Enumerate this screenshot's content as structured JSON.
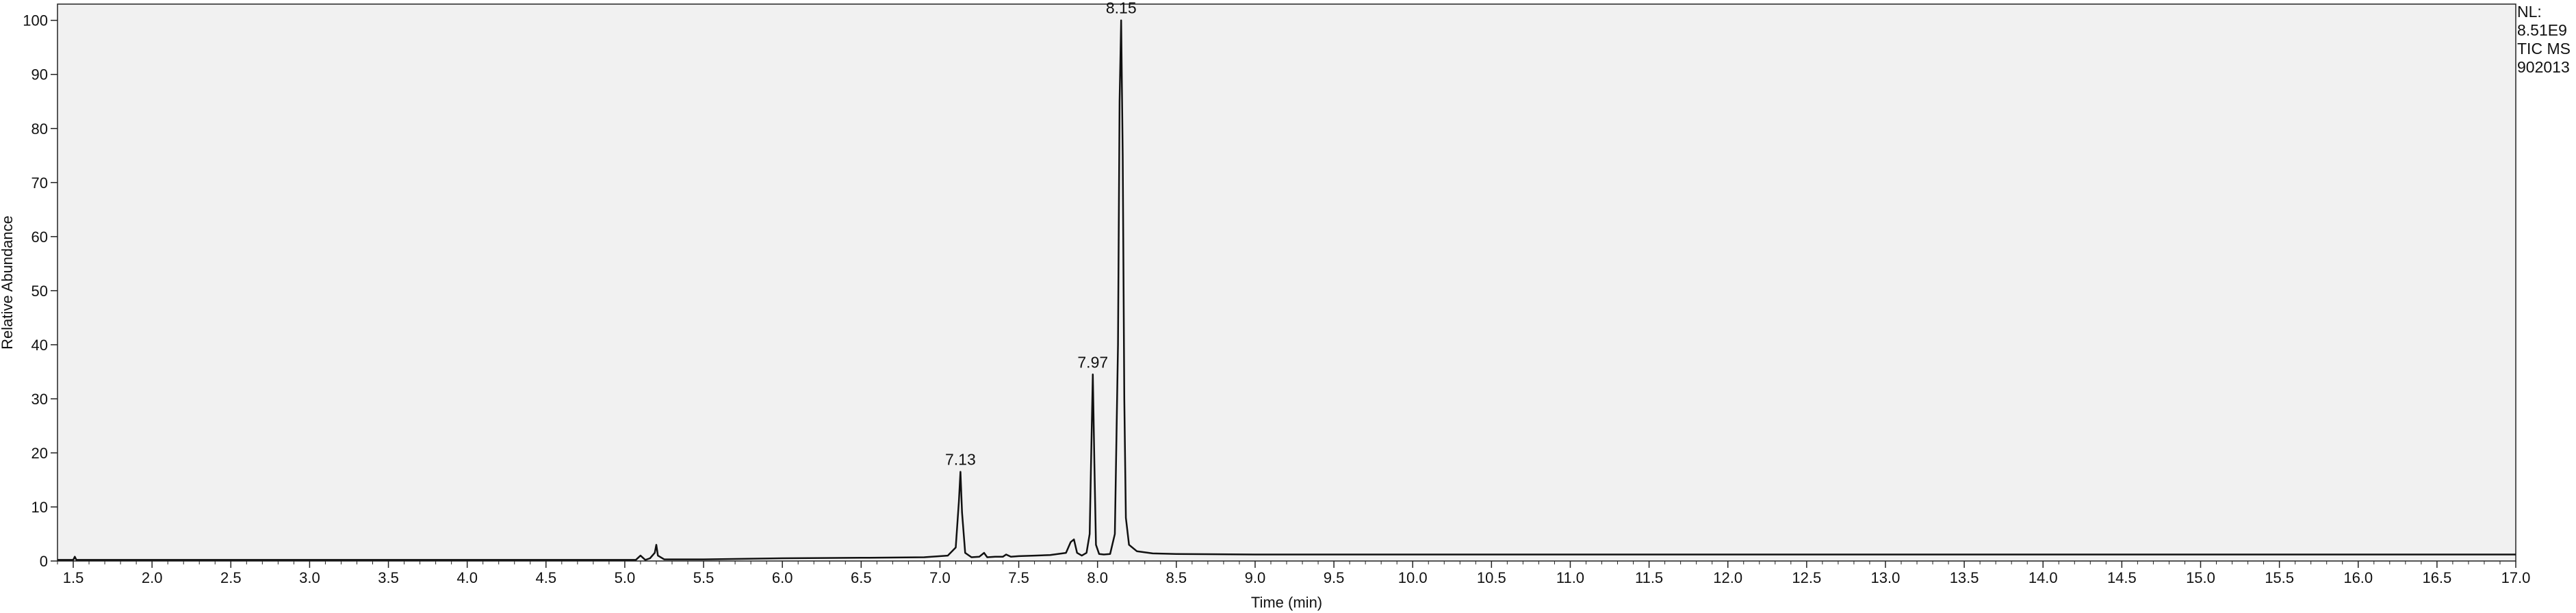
{
  "chart_data": {
    "type": "line",
    "title": "",
    "xlabel": "Time (min)",
    "ylabel": "Relative Abundance",
    "xlim": [
      1.4,
      17.0
    ],
    "ylim": [
      0,
      103
    ],
    "x_ticks": [
      "1.5",
      "2.0",
      "2.5",
      "3.0",
      "3.5",
      "4.0",
      "4.5",
      "5.0",
      "5.5",
      "6.0",
      "6.5",
      "7.0",
      "7.5",
      "8.0",
      "8.5",
      "9.0",
      "9.5",
      "10.0",
      "10.5",
      "11.0",
      "11.5",
      "12.0",
      "12.5",
      "13.0",
      "13.5",
      "14.0",
      "14.5",
      "15.0",
      "15.5",
      "16.0",
      "16.5",
      "17.0"
    ],
    "y_ticks": [
      "0",
      "10",
      "20",
      "30",
      "40",
      "50",
      "60",
      "70",
      "80",
      "90",
      "100"
    ],
    "grid": false,
    "peak_labels": [
      {
        "x": 7.13,
        "y": 16.5,
        "label": "7.13"
      },
      {
        "x": 7.97,
        "y": 34.5,
        "label": "7.97"
      },
      {
        "x": 8.15,
        "y": 100,
        "label": "8.15"
      }
    ],
    "series": [
      {
        "x": [
          1.4,
          1.5,
          1.51,
          1.52,
          2.0,
          3.0,
          4.0,
          5.0,
          5.07,
          5.1,
          5.13,
          5.16,
          5.19,
          5.2,
          5.21,
          5.25,
          5.5,
          6.0,
          6.5,
          6.9,
          7.05,
          7.1,
          7.12,
          7.13,
          7.14,
          7.16,
          7.2,
          7.25,
          7.28,
          7.3,
          7.35,
          7.4,
          7.42,
          7.45,
          7.5,
          7.6,
          7.7,
          7.8,
          7.83,
          7.85,
          7.87,
          7.9,
          7.93,
          7.95,
          7.96,
          7.97,
          7.98,
          7.99,
          8.01,
          8.04,
          8.08,
          8.11,
          8.13,
          8.14,
          8.15,
          8.16,
          8.17,
          8.18,
          8.2,
          8.25,
          8.35,
          8.5,
          9.0,
          9.5,
          10.0,
          12.0,
          14.0,
          16.0,
          17.0
        ],
        "y": [
          0.2,
          0.2,
          0.8,
          0.2,
          0.2,
          0.2,
          0.2,
          0.2,
          0.2,
          1.0,
          0.2,
          0.5,
          1.5,
          3.0,
          1.0,
          0.3,
          0.3,
          0.5,
          0.6,
          0.7,
          1.0,
          2.5,
          11.0,
          16.5,
          9.0,
          1.5,
          0.7,
          0.8,
          1.5,
          0.7,
          0.8,
          0.8,
          1.2,
          0.8,
          0.9,
          1.0,
          1.1,
          1.5,
          3.5,
          4.0,
          1.5,
          1.0,
          1.5,
          5.0,
          20.0,
          34.5,
          18.0,
          3.0,
          1.3,
          1.2,
          1.3,
          5.0,
          40.0,
          85.0,
          100,
          75.0,
          30.0,
          8.0,
          3.0,
          1.8,
          1.4,
          1.3,
          1.2,
          1.2,
          1.2,
          1.2,
          1.2,
          1.2,
          1.2
        ]
      }
    ]
  },
  "info": {
    "nl_label": "NL:",
    "nl_value": "8.51E9",
    "trace": "TIC  MS",
    "file": "902013"
  },
  "colors": {
    "plot_background": "#f1f1f1",
    "trace": "#111111",
    "axis": "#222222"
  }
}
